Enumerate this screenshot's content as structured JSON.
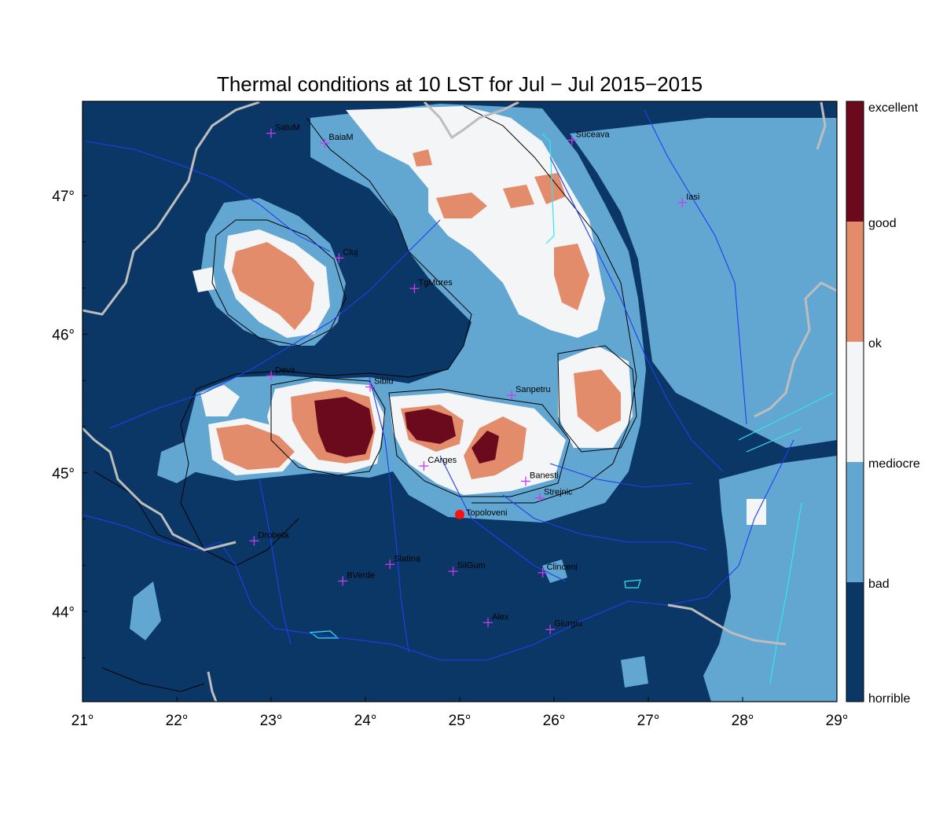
{
  "title": "Thermal conditions at 10 LST for Jul − Jul  2015−2015",
  "colors": {
    "horrible": "#0b3766",
    "bad": "#62a7d2",
    "mediocre": "#f4f5f7",
    "ok": "#e38c6c",
    "good": "#6a0a1c",
    "excellent": "#6a0a1c",
    "river": "#1f3ff0",
    "border": "#bdbdbd",
    "marker": "#c83cf0",
    "highlight": "#ff1010",
    "lake": "#31e6f0",
    "contour": "#000000"
  },
  "axes": {
    "x_ticks": [
      "21°",
      "22°",
      "23°",
      "24°",
      "25°",
      "26°",
      "27°",
      "28°",
      "29°"
    ],
    "y_ticks": [
      "47°",
      "46°",
      "45°",
      "44°"
    ],
    "lon_range": [
      21,
      29
    ],
    "lat_range": [
      43.35,
      47.68
    ]
  },
  "legend": {
    "labels": [
      "excellent",
      "good",
      "ok",
      "mediocre",
      "bad",
      "horrible"
    ]
  },
  "cities": [
    {
      "name": "SatuM",
      "lon": 23.0,
      "lat": 47.45
    },
    {
      "name": "BaiaM",
      "lon": 23.57,
      "lat": 47.38
    },
    {
      "name": "Suceava",
      "lon": 26.19,
      "lat": 47.4
    },
    {
      "name": "Iasi",
      "lon": 27.36,
      "lat": 46.95
    },
    {
      "name": "Cluj",
      "lon": 23.72,
      "lat": 46.55
    },
    {
      "name": "TgMures",
      "lon": 24.52,
      "lat": 46.33
    },
    {
      "name": "Deva",
      "lon": 23.0,
      "lat": 45.7
    },
    {
      "name": "Sibiu",
      "lon": 24.05,
      "lat": 45.62
    },
    {
      "name": "Sanpetru",
      "lon": 25.55,
      "lat": 45.56
    },
    {
      "name": "CArges",
      "lon": 24.62,
      "lat": 45.05
    },
    {
      "name": "Banesti",
      "lon": 25.7,
      "lat": 44.94
    },
    {
      "name": "Strejnic",
      "lon": 25.85,
      "lat": 44.82
    },
    {
      "name": "Drobeta",
      "lon": 22.82,
      "lat": 44.51
    },
    {
      "name": "Slatina",
      "lon": 24.26,
      "lat": 44.34
    },
    {
      "name": "SilGum",
      "lon": 24.93,
      "lat": 44.29
    },
    {
      "name": "Clinceni",
      "lon": 25.88,
      "lat": 44.28
    },
    {
      "name": "BVerde",
      "lon": 23.76,
      "lat": 44.22
    },
    {
      "name": "Alex",
      "lon": 25.3,
      "lat": 43.92
    },
    {
      "name": "Giurgiu",
      "lon": 25.96,
      "lat": 43.87
    }
  ],
  "highlight_city": {
    "name": "Topoloveni",
    "lon": 25.0,
    "lat": 44.7
  }
}
